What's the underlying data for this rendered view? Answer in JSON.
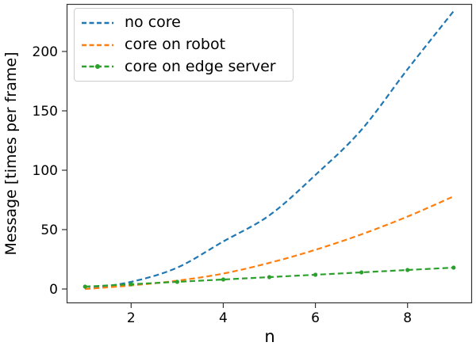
{
  "figure": {
    "background": "#ffffff",
    "text_color": "#000000",
    "spine_color": "#333333"
  },
  "legend": {
    "items": [
      {
        "label": "no core",
        "color": "#1f77b4",
        "marker": false
      },
      {
        "label": "core on robot",
        "color": "#ff7f0e",
        "marker": false
      },
      {
        "label": "core on edge server",
        "color": "#2ca02c",
        "marker": true
      }
    ]
  },
  "chart_data": {
    "type": "line",
    "title": "",
    "xlabel": "n",
    "ylabel": "Message [times per frame]",
    "x": [
      1,
      2,
      3,
      4,
      5,
      6,
      7,
      8,
      9
    ],
    "series": [
      {
        "name": "no core",
        "color": "#1f77b4",
        "linestyle": "dashed",
        "marker": "none",
        "values": [
          0,
          6,
          18,
          40,
          62,
          96,
          134,
          185,
          234
        ]
      },
      {
        "name": "core on robot",
        "color": "#ff7f0e",
        "linestyle": "dashed",
        "marker": "none",
        "values": [
          0,
          3,
          7,
          13,
          22,
          33,
          46,
          61,
          78
        ]
      },
      {
        "name": "core on edge server",
        "color": "#2ca02c",
        "linestyle": "dashed",
        "marker": "dot",
        "values": [
          2,
          4,
          6,
          8,
          10,
          12,
          14,
          16,
          18
        ]
      }
    ],
    "x_ticks": [
      2,
      4,
      6,
      8
    ],
    "y_ticks": [
      0,
      50,
      100,
      150,
      200
    ],
    "xlim": [
      0.6,
      9.4
    ],
    "ylim": [
      -12,
      240
    ],
    "grid": false,
    "legend_position": "upper left"
  }
}
